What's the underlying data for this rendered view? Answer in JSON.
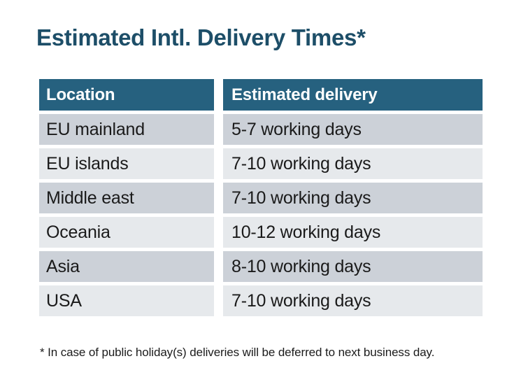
{
  "page": {
    "title": "Estimated Intl. Delivery Times*",
    "footnote": "* In case of public holiday(s) deliveries will be deferred to next business day."
  },
  "table": {
    "columns": [
      "Location",
      "Estimated delivery"
    ],
    "rows": [
      {
        "location": "EU mainland",
        "delivery": "5-7 working days"
      },
      {
        "location": "EU islands",
        "delivery": "7-10 working days"
      },
      {
        "location": "Middle east",
        "delivery": "7-10 working days"
      },
      {
        "location": "Oceania",
        "delivery": "10-12 working days"
      },
      {
        "location": "Asia",
        "delivery": "8-10 working days"
      },
      {
        "location": "USA",
        "delivery": "7-10 working days"
      }
    ]
  },
  "colors": {
    "title_color": "#1d4e68",
    "header_bg": "#26617f",
    "header_text": "#ffffff",
    "row_odd_bg": "#ccd1d8",
    "row_even_bg": "#e6e9ec",
    "body_text": "#1a1a1a"
  }
}
